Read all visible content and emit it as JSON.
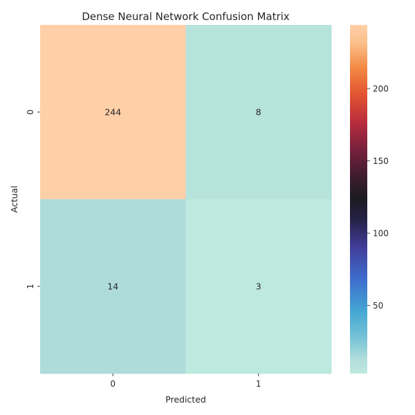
{
  "chart_data": {
    "type": "heatmap",
    "title": "Dense Neural Network Confusion Matrix",
    "xlabel": "Predicted",
    "ylabel": "Actual",
    "x_categories": [
      "0",
      "1"
    ],
    "y_categories": [
      "0",
      "1"
    ],
    "values": [
      [
        244,
        8
      ],
      [
        14,
        3
      ]
    ],
    "colorbar": {
      "range": [
        3,
        244
      ],
      "ticks": [
        50,
        100,
        150,
        200
      ],
      "tick_labels": [
        "50",
        "100",
        "150",
        "200"
      ],
      "colormap": "icefire"
    },
    "annotations": true,
    "grid": false
  },
  "colors": {
    "text": "#262626",
    "axis": "#262626"
  }
}
